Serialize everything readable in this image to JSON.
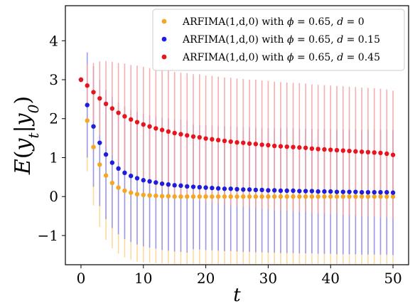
{
  "chart_data": {
    "type": "scatter",
    "title": "",
    "xlabel": "t",
    "ylabel": "E(y_t|y_0)",
    "xlim": [
      -2.5,
      52.5
    ],
    "ylim": [
      -1.75,
      4.9
    ],
    "xticks": [
      0,
      10,
      20,
      30,
      40,
      50
    ],
    "xtick_labels": [
      "0",
      "10",
      "20",
      "30",
      "40",
      "50"
    ],
    "yticks": [
      -1,
      0,
      1,
      2,
      3,
      4
    ],
    "ytick_labels": [
      "−1",
      "0",
      "1",
      "2",
      "3",
      "4"
    ],
    "grid": false,
    "legend_position": "top-right",
    "error_bars": true,
    "series": [
      {
        "name": "ARFIMA(1,d,0) with ϕ = 0.65, d = 0",
        "legend_parts": [
          "ARFIMA(1,d,0) with ",
          "ϕ",
          " = 0.65, ",
          "d",
          " = 0"
        ],
        "color": "#f5a623",
        "errcolor": "#fbd38d",
        "x": [
          0,
          1,
          2,
          3,
          4,
          5,
          6,
          7,
          8,
          9,
          10,
          11,
          12,
          13,
          14,
          15,
          16,
          17,
          18,
          19,
          20,
          21,
          22,
          23,
          24,
          25,
          26,
          27,
          28,
          29,
          30,
          31,
          32,
          33,
          34,
          35,
          36,
          37,
          38,
          39,
          40,
          41,
          42,
          43,
          44,
          45,
          46,
          47,
          48,
          49,
          50
        ],
        "y": [
          3.0,
          1.95,
          1.27,
          0.82,
          0.54,
          0.35,
          0.23,
          0.15,
          0.1,
          0.06,
          0.04,
          0.03,
          0.02,
          0.01,
          0.01,
          0.0,
          0.0,
          0.0,
          0.0,
          0.0,
          0.0,
          0.0,
          0.0,
          0.0,
          0.0,
          0.0,
          0.0,
          0.0,
          0.0,
          0.0,
          0.0,
          0.0,
          0.0,
          0.0,
          0.0,
          0.0,
          0.0,
          0.0,
          0.0,
          0.0,
          0.0,
          0.0,
          0.0,
          0.0,
          0.0,
          0.0,
          0.0,
          0.0,
          0.0,
          0.0,
          0.0
        ],
        "err": [
          0.0,
          1.3,
          1.5,
          1.6,
          1.65,
          1.68,
          1.7,
          1.71,
          1.72,
          1.73,
          1.73,
          1.73,
          1.73,
          1.73,
          1.73,
          1.73,
          1.73,
          1.73,
          1.73,
          1.73,
          1.73,
          1.73,
          1.73,
          1.73,
          1.73,
          1.73,
          1.73,
          1.73,
          1.73,
          1.73,
          1.73,
          1.73,
          1.73,
          1.73,
          1.73,
          1.73,
          1.73,
          1.73,
          1.73,
          1.73,
          1.73,
          1.73,
          1.73,
          1.73,
          1.73,
          1.73,
          1.73,
          1.73,
          1.73,
          1.73,
          1.73
        ]
      },
      {
        "name": "ARFIMA(1,d,0) with ϕ = 0.65, d = 0.15",
        "legend_parts": [
          "ARFIMA(1,d,0) with ",
          "ϕ",
          " = 0.65, ",
          "d",
          " = 0.15"
        ],
        "color": "#1f1fdb",
        "errcolor": "#8c8cf0",
        "x": [
          0,
          1,
          2,
          3,
          4,
          5,
          6,
          7,
          8,
          9,
          10,
          11,
          12,
          13,
          14,
          15,
          16,
          17,
          18,
          19,
          20,
          21,
          22,
          23,
          24,
          25,
          26,
          27,
          28,
          29,
          30,
          31,
          32,
          33,
          34,
          35,
          36,
          37,
          38,
          39,
          40,
          41,
          42,
          43,
          44,
          45,
          46,
          47,
          48,
          49,
          50
        ],
        "y": [
          3.0,
          2.35,
          1.8,
          1.38,
          1.08,
          0.87,
          0.72,
          0.61,
          0.53,
          0.47,
          0.42,
          0.39,
          0.36,
          0.33,
          0.31,
          0.29,
          0.28,
          0.26,
          0.25,
          0.24,
          0.23,
          0.22,
          0.21,
          0.2,
          0.2,
          0.19,
          0.18,
          0.18,
          0.17,
          0.17,
          0.16,
          0.16,
          0.15,
          0.15,
          0.15,
          0.14,
          0.14,
          0.14,
          0.13,
          0.13,
          0.13,
          0.12,
          0.12,
          0.12,
          0.12,
          0.11,
          0.11,
          0.11,
          0.11,
          0.11,
          0.1
        ],
        "err": [
          0.0,
          1.35,
          1.55,
          1.62,
          1.66,
          1.68,
          1.69,
          1.7,
          1.7,
          1.7,
          1.7,
          1.7,
          1.7,
          1.7,
          1.7,
          1.7,
          1.7,
          1.7,
          1.6,
          1.6,
          1.6,
          1.6,
          1.6,
          1.6,
          1.6,
          1.6,
          1.6,
          1.6,
          1.6,
          1.6,
          1.6,
          1.6,
          1.6,
          1.6,
          1.6,
          1.6,
          1.6,
          1.6,
          1.6,
          1.6,
          1.6,
          1.6,
          1.6,
          1.6,
          1.6,
          1.6,
          1.6,
          1.6,
          1.6,
          1.6,
          1.6
        ]
      },
      {
        "name": "ARFIMA(1,d,0) with ϕ = 0.65, d = 0.45",
        "legend_parts": [
          "ARFIMA(1,d,0) with ",
          "ϕ",
          " = 0.65, ",
          "d",
          " = 0.45"
        ],
        "color": "#e8141e",
        "errcolor": "#f5a0a0",
        "x": [
          0,
          1,
          2,
          3,
          4,
          5,
          6,
          7,
          8,
          9,
          10,
          11,
          12,
          13,
          14,
          15,
          16,
          17,
          18,
          19,
          20,
          21,
          22,
          23,
          24,
          25,
          26,
          27,
          28,
          29,
          30,
          31,
          32,
          33,
          34,
          35,
          36,
          37,
          38,
          39,
          40,
          41,
          42,
          43,
          44,
          45,
          46,
          47,
          48,
          49,
          50
        ],
        "y": [
          3.0,
          2.85,
          2.68,
          2.52,
          2.38,
          2.26,
          2.15,
          2.06,
          1.98,
          1.91,
          1.85,
          1.8,
          1.75,
          1.71,
          1.67,
          1.63,
          1.6,
          1.57,
          1.54,
          1.52,
          1.49,
          1.47,
          1.45,
          1.43,
          1.41,
          1.39,
          1.38,
          1.36,
          1.35,
          1.33,
          1.32,
          1.3,
          1.29,
          1.28,
          1.27,
          1.26,
          1.25,
          1.23,
          1.22,
          1.21,
          1.2,
          1.19,
          1.18,
          1.17,
          1.16,
          1.15,
          1.14,
          1.13,
          1.12,
          1.1,
          1.07
        ],
        "err": [
          0.0,
          0.55,
          0.75,
          0.95,
          1.1,
          1.2,
          1.28,
          1.35,
          1.4,
          1.45,
          1.48,
          1.5,
          1.52,
          1.54,
          1.56,
          1.57,
          1.58,
          1.6,
          1.6,
          1.62,
          1.62,
          1.63,
          1.63,
          1.63,
          1.64,
          1.64,
          1.64,
          1.64,
          1.65,
          1.65,
          1.65,
          1.65,
          1.65,
          1.65,
          1.65,
          1.65,
          1.65,
          1.65,
          1.65,
          1.65,
          1.65,
          1.65,
          1.65,
          1.65,
          1.65,
          1.65,
          1.65,
          1.65,
          1.65,
          1.65,
          1.65
        ]
      }
    ]
  }
}
